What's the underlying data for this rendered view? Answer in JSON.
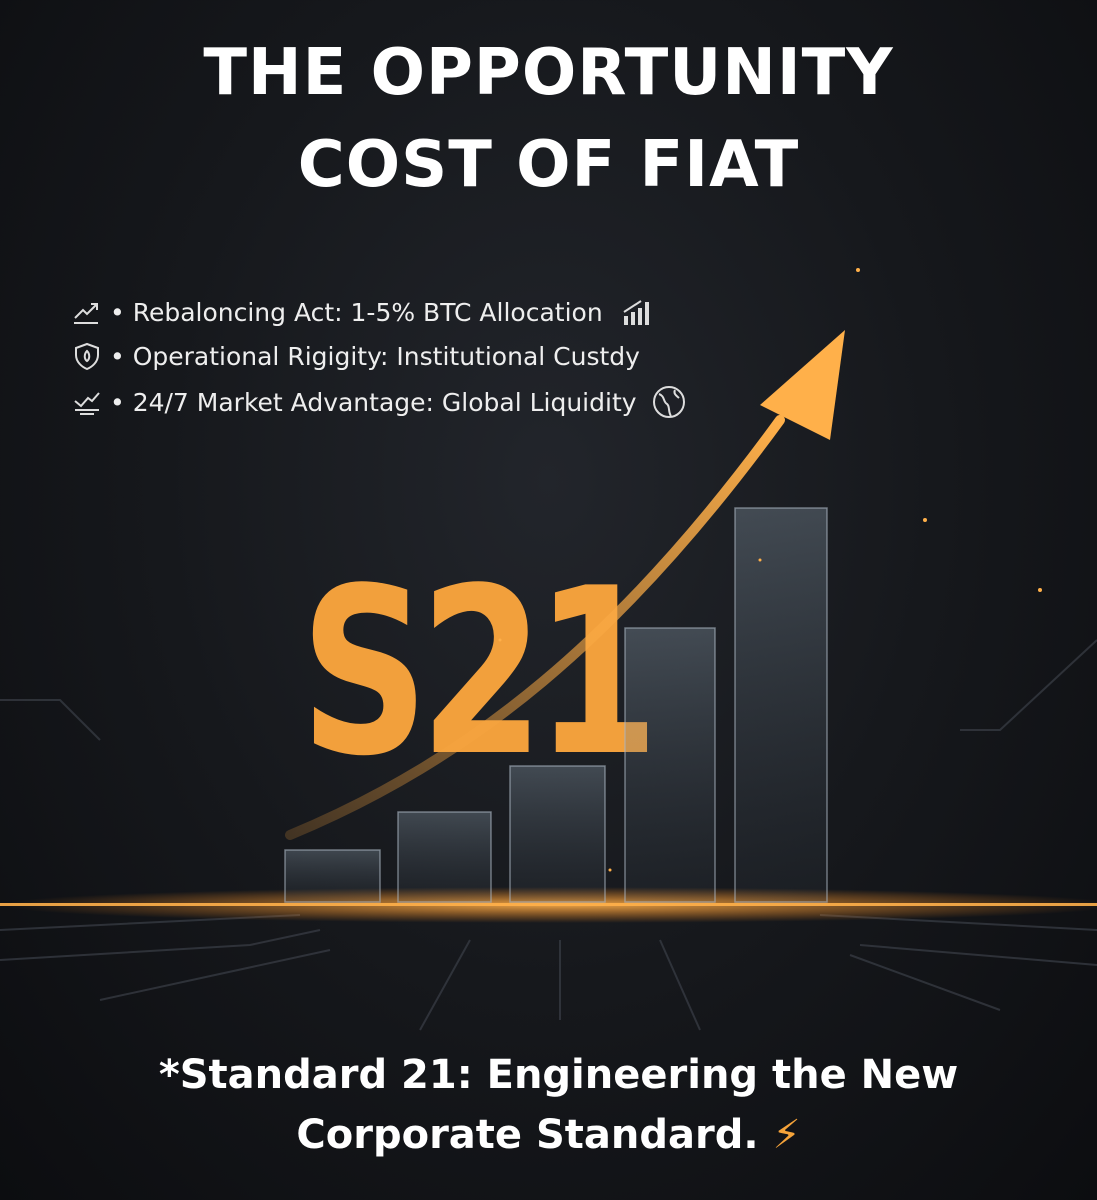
{
  "title": {
    "line1": "THE OPPORTUNITY",
    "line2": "COST OF FIAT"
  },
  "bullets": [
    {
      "icon": "trend-up-icon",
      "text": "• Rebaloncing Act: 1-5% BTC Allocation",
      "trailing_icon": "bar-chart-icon"
    },
    {
      "icon": "shield-icon",
      "text": "• Operational Rigigity: Institutional Custdy"
    },
    {
      "icon": "chart-check-icon",
      "text": "• 24/7 Market Advantage: Global Liquidity",
      "trailing_icon": "globe-icon"
    }
  ],
  "logo": {
    "text": "S21",
    "color": "#f2a03c"
  },
  "footer": {
    "line1": "*Standard 21: Engineering the New",
    "line2": "Corporate Standard.",
    "icon": "lightning-icon"
  },
  "colors": {
    "accent": "#f2a03c",
    "background": "#16181c"
  }
}
